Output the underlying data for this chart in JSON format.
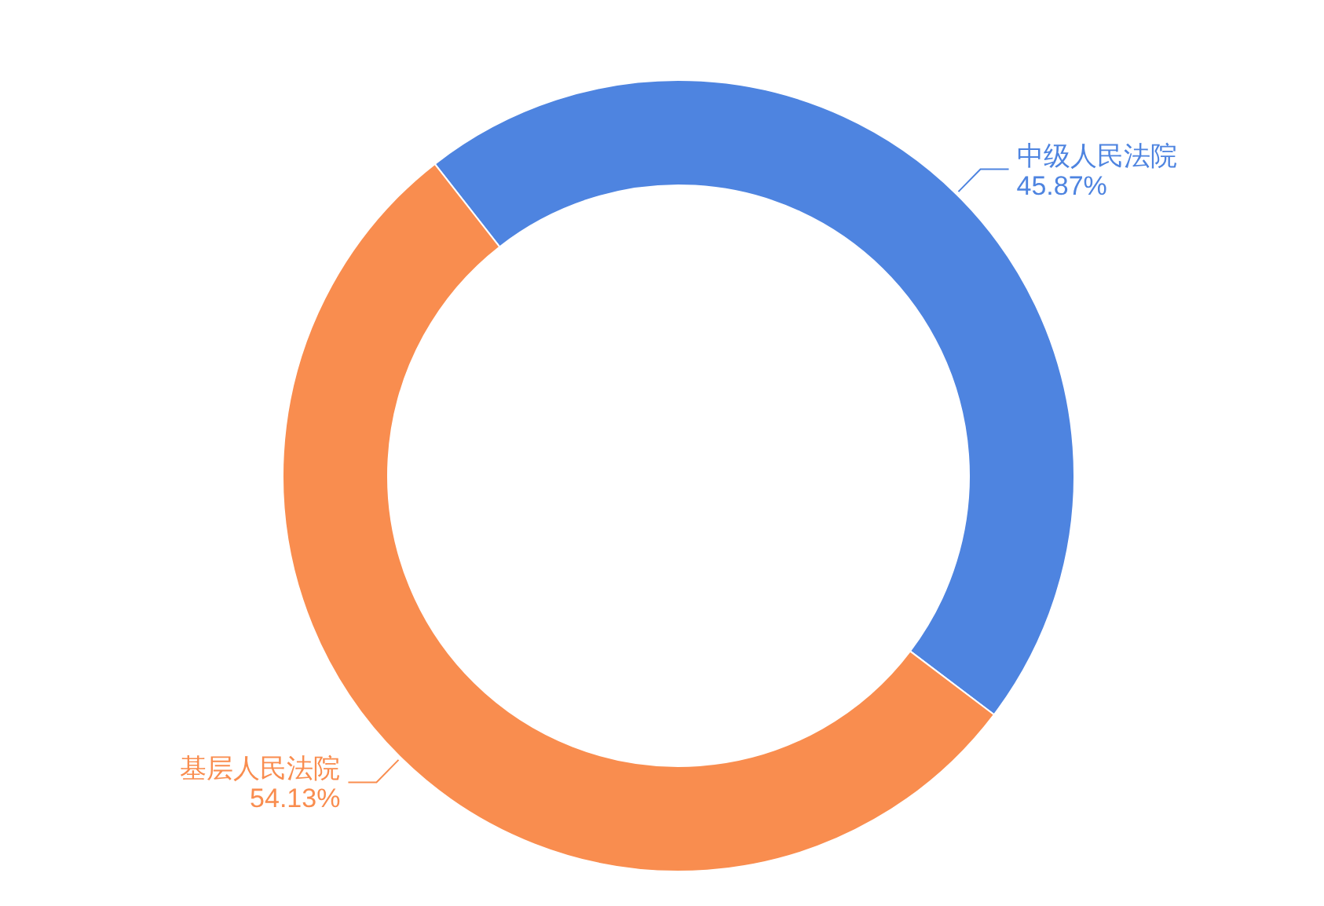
{
  "chart_data": {
    "type": "donut",
    "categories": [
      "中级人民法院",
      "基层人民法院"
    ],
    "values": [
      45.87,
      54.13
    ],
    "colors": [
      "#4e84e0",
      "#f98d4f"
    ],
    "value_labels": [
      "45.87%",
      "54.13%"
    ]
  }
}
